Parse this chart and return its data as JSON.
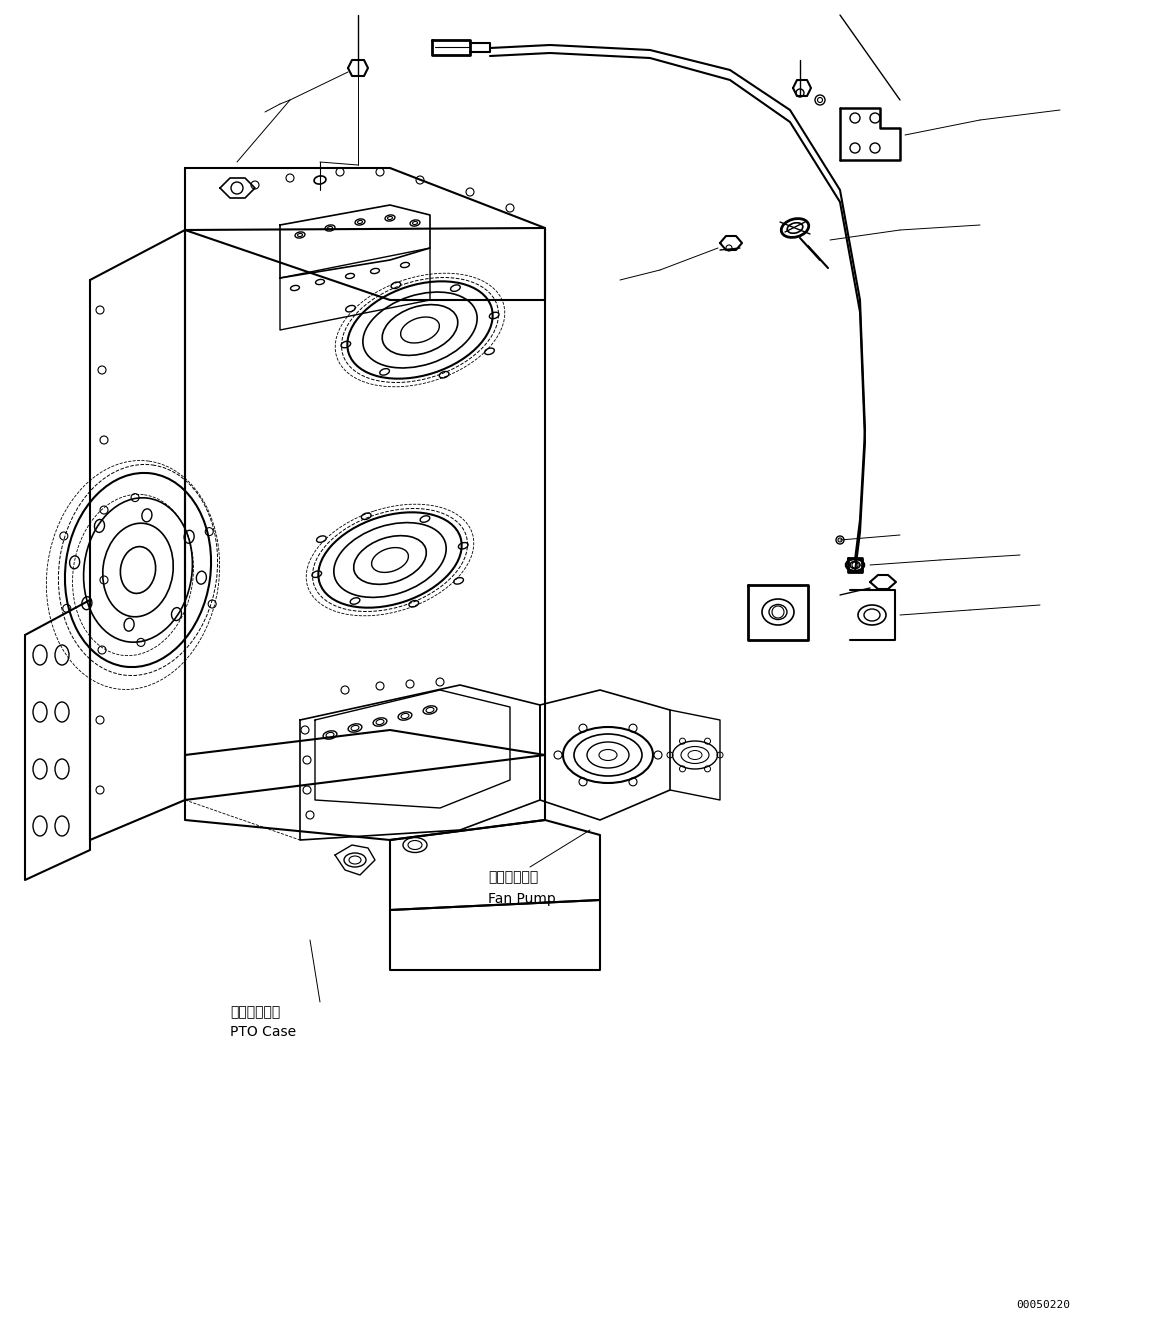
{
  "figure_width": 11.63,
  "figure_height": 13.38,
  "dpi": 100,
  "bg_color": "#ffffff",
  "line_color": "#000000",
  "label_pto_case_jp": "ＰＴＯケース",
  "label_pto_case_en": "PTO Case",
  "label_fan_pump_jp": "ファンポンプ",
  "label_fan_pump_en": "Fan Pump",
  "catalog_number": "00050220",
  "font_size_label": 10,
  "font_size_catalog": 8
}
